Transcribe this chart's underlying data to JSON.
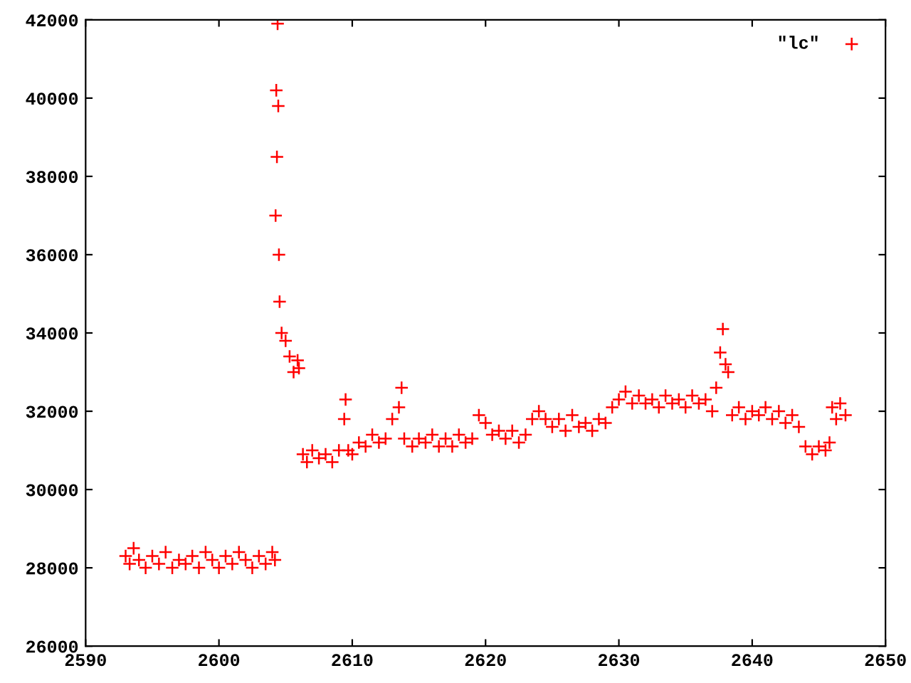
{
  "chart_data": {
    "type": "scatter",
    "marker": "cross",
    "legend": "top right",
    "grid": false,
    "xlim": [
      2590,
      2650
    ],
    "xticks": [
      2590,
      2600,
      2610,
      2620,
      2630,
      2640,
      2650
    ],
    "ylim": [
      26000,
      42000
    ],
    "yticks": [
      26000,
      28000,
      30000,
      32000,
      34000,
      36000,
      38000,
      40000,
      42000
    ],
    "series": [
      {
        "name": "\"lc\"",
        "color": "#ff0000",
        "x": [
          2593.0,
          2593.3,
          2593.6,
          2594.0,
          2594.5,
          2595.0,
          2595.5,
          2596.0,
          2596.5,
          2597.0,
          2597.5,
          2598.0,
          2598.5,
          2599.0,
          2599.5,
          2600.0,
          2600.5,
          2601.0,
          2601.5,
          2602.0,
          2602.5,
          2603.0,
          2603.5,
          2604.0,
          2604.2,
          2604.25,
          2604.3,
          2604.35,
          2604.4,
          2604.45,
          2604.5,
          2604.55,
          2604.7,
          2605.0,
          2605.3,
          2605.6,
          2605.9,
          2606.0,
          2606.3,
          2606.6,
          2607.0,
          2607.5,
          2608.0,
          2608.5,
          2609.0,
          2609.4,
          2609.5,
          2609.7,
          2610.0,
          2610.5,
          2611.0,
          2611.5,
          2612.0,
          2612.5,
          2613.0,
          2613.5,
          2613.7,
          2613.9,
          2614.5,
          2615.0,
          2615.5,
          2616.0,
          2616.5,
          2617.0,
          2617.5,
          2618.0,
          2618.5,
          2619.0,
          2619.5,
          2620.0,
          2620.5,
          2621.0,
          2621.5,
          2622.0,
          2622.5,
          2623.0,
          2623.5,
          2624.0,
          2624.5,
          2625.0,
          2625.5,
          2626.0,
          2626.5,
          2627.0,
          2627.5,
          2628.0,
          2628.5,
          2629.0,
          2629.5,
          2630.0,
          2630.5,
          2631.0,
          2631.5,
          2632.0,
          2632.5,
          2633.0,
          2633.5,
          2634.0,
          2634.5,
          2635.0,
          2635.5,
          2636.0,
          2636.5,
          2637.0,
          2637.3,
          2637.6,
          2637.8,
          2638.0,
          2638.2,
          2638.5,
          2639.0,
          2639.5,
          2640.0,
          2640.5,
          2641.0,
          2641.5,
          2642.0,
          2642.5,
          2643.0,
          2643.5,
          2644.0,
          2644.5,
          2645.0,
          2645.5,
          2645.8,
          2646.0,
          2646.3,
          2646.6,
          2647.0
        ],
        "values": [
          28300,
          28100,
          28500,
          28200,
          28000,
          28300,
          28100,
          28400,
          28000,
          28200,
          28100,
          28300,
          28000,
          28400,
          28200,
          28000,
          28300,
          28100,
          28400,
          28200,
          28000,
          28300,
          28100,
          28400,
          28200,
          37000,
          40200,
          38500,
          41900,
          39800,
          36000,
          34800,
          34000,
          33800,
          33400,
          33000,
          33300,
          33100,
          30900,
          30700,
          31000,
          30800,
          30900,
          30700,
          31000,
          31800,
          32300,
          31000,
          30900,
          31200,
          31100,
          31400,
          31200,
          31300,
          31800,
          32100,
          32600,
          31300,
          31100,
          31300,
          31200,
          31400,
          31100,
          31300,
          31100,
          31400,
          31200,
          31300,
          31900,
          31700,
          31400,
          31500,
          31300,
          31500,
          31200,
          31400,
          31800,
          32000,
          31800,
          31600,
          31800,
          31500,
          31900,
          31600,
          31700,
          31500,
          31800,
          31700,
          32100,
          32300,
          32500,
          32200,
          32400,
          32200,
          32300,
          32100,
          32400,
          32200,
          32300,
          32100,
          32400,
          32200,
          32300,
          32000,
          32600,
          33500,
          34100,
          33200,
          33000,
          31900,
          32100,
          31800,
          32000,
          31900,
          32100,
          31800,
          32000,
          31700,
          31900,
          31600,
          31100,
          30900,
          31100,
          31000,
          31200,
          32100,
          31800,
          32200,
          31900
        ]
      }
    ]
  }
}
